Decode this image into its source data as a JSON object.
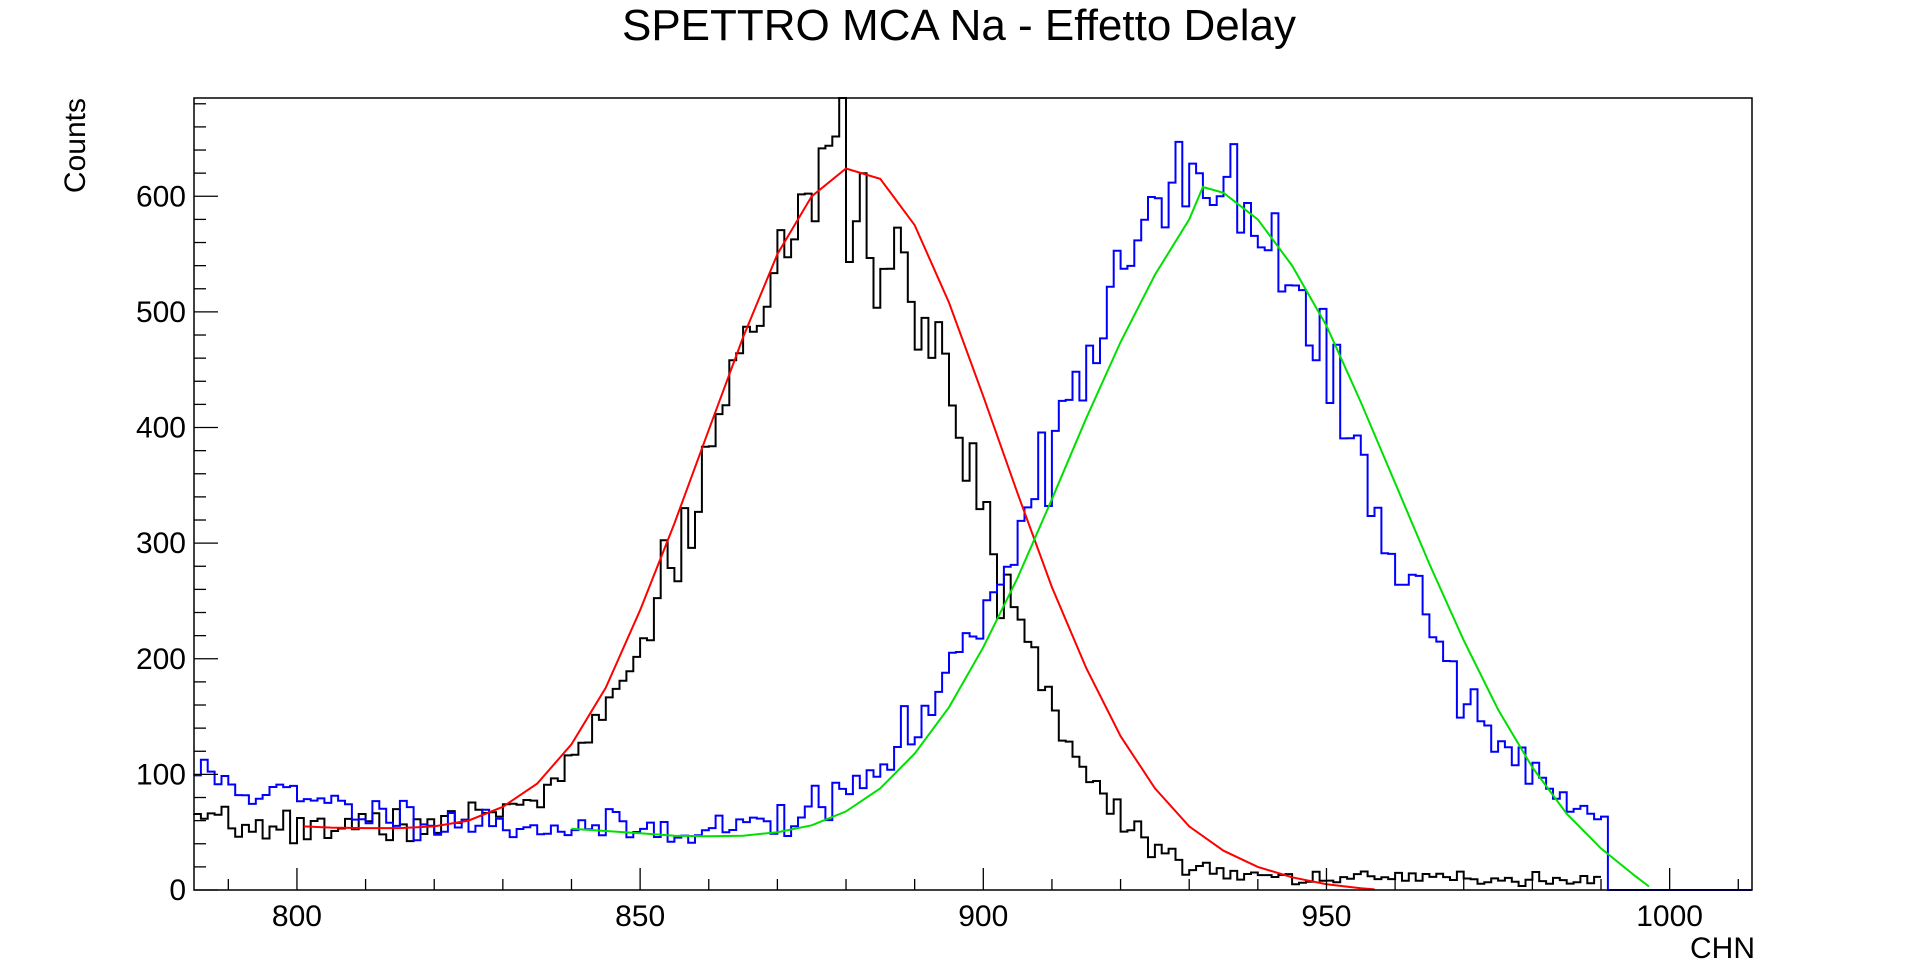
{
  "chart_data": {
    "type": "line",
    "title": "SPETTRO MCA Na - Effetto Delay",
    "xlabel": "CHN",
    "ylabel": "Counts",
    "xlim": [
      785,
      1012
    ],
    "ylim": [
      0,
      685
    ],
    "grid": false,
    "x_ticks": [
      {
        "value": 800,
        "label": "800"
      },
      {
        "value": 850,
        "label": "850"
      },
      {
        "value": 900,
        "label": "900"
      },
      {
        "value": 950,
        "label": "950"
      },
      {
        "value": 1000,
        "label": "1000"
      }
    ],
    "y_ticks": [
      {
        "value": 0,
        "label": "0"
      },
      {
        "value": 100,
        "label": "100"
      },
      {
        "value": 200,
        "label": "200"
      },
      {
        "value": 300,
        "label": "300"
      },
      {
        "value": 400,
        "label": "400"
      },
      {
        "value": 500,
        "label": "500"
      },
      {
        "value": 600,
        "label": "600"
      }
    ],
    "series": [
      {
        "kind": "histogram",
        "color": "#000000",
        "bin_start": 785,
        "bin_width": 1,
        "x_max": 990,
        "seed": 7,
        "shape": {
          "baseline": 55,
          "amplitude": 570,
          "mean": 880,
          "sigma": 18.5,
          "tail_level": 10
        }
      },
      {
        "kind": "histogram",
        "color": "#0000ff",
        "bin_start": 785,
        "bin_width": 1,
        "x_max": 1012,
        "seed": 11,
        "shape": {
          "baseline": 48,
          "amplitude": 560,
          "mean": 932,
          "sigma": 22,
          "left_excess": 55,
          "left_decay": 25,
          "cutoff": 991
        }
      },
      {
        "kind": "fit",
        "color": "#ff0000",
        "x_range": [
          801,
          957
        ],
        "points": [
          [
            801,
            55
          ],
          [
            805,
            54
          ],
          [
            810,
            53.5
          ],
          [
            815,
            53.5
          ],
          [
            820,
            55
          ],
          [
            825,
            60
          ],
          [
            830,
            72
          ],
          [
            835,
            92
          ],
          [
            840,
            126
          ],
          [
            845,
            175
          ],
          [
            850,
            242
          ],
          [
            855,
            317
          ],
          [
            860,
            398
          ],
          [
            865,
            478
          ],
          [
            870,
            550
          ],
          [
            875,
            600
          ],
          [
            880,
            624
          ],
          [
            885,
            615
          ],
          [
            890,
            575
          ],
          [
            895,
            508
          ],
          [
            900,
            427
          ],
          [
            905,
            343
          ],
          [
            910,
            262
          ],
          [
            915,
            192
          ],
          [
            920,
            133
          ],
          [
            925,
            88
          ],
          [
            930,
            55
          ],
          [
            935,
            34
          ],
          [
            940,
            20
          ],
          [
            945,
            11
          ],
          [
            950,
            5
          ],
          [
            955,
            1.5
          ],
          [
            957,
            0.5
          ]
        ]
      },
      {
        "kind": "fit",
        "color": "#00e000",
        "x_range": [
          840,
          997
        ],
        "points": [
          [
            840,
            53
          ],
          [
            845,
            51
          ],
          [
            850,
            49
          ],
          [
            855,
            47
          ],
          [
            860,
            46.5
          ],
          [
            865,
            47
          ],
          [
            870,
            50
          ],
          [
            875,
            56
          ],
          [
            880,
            68
          ],
          [
            885,
            88
          ],
          [
            890,
            118
          ],
          [
            895,
            158
          ],
          [
            900,
            210
          ],
          [
            905,
            270
          ],
          [
            910,
            338
          ],
          [
            915,
            408
          ],
          [
            920,
            474
          ],
          [
            925,
            532
          ],
          [
            930,
            580
          ],
          [
            932,
            608
          ],
          [
            935,
            603
          ],
          [
            940,
            580
          ],
          [
            945,
            540
          ],
          [
            950,
            488
          ],
          [
            955,
            422
          ],
          [
            960,
            352
          ],
          [
            965,
            282
          ],
          [
            970,
            216
          ],
          [
            975,
            156
          ],
          [
            980,
            106
          ],
          [
            985,
            66
          ],
          [
            990,
            36
          ],
          [
            995,
            12
          ],
          [
            997,
            3
          ]
        ]
      }
    ]
  }
}
